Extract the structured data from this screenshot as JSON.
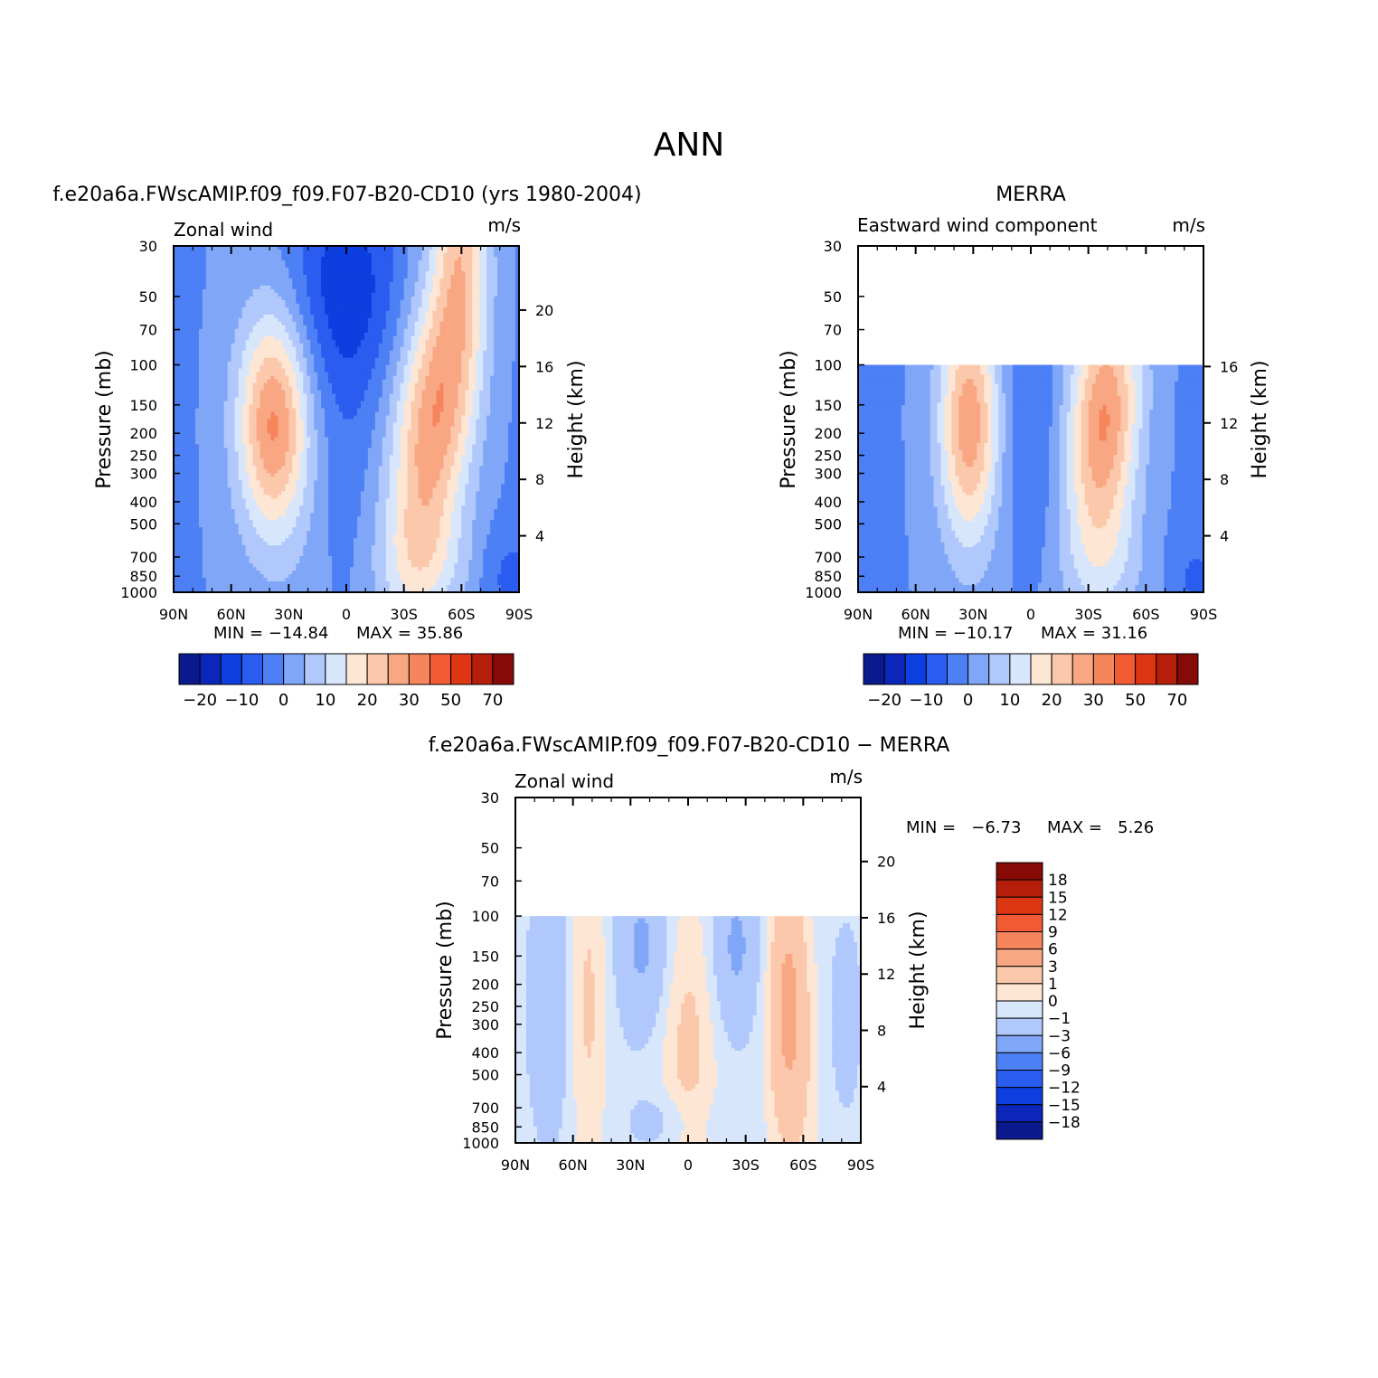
{
  "figure": {
    "title": "ANN",
    "season": "ANN"
  },
  "panels": [
    {
      "title": "f.e20a6a.FWscAMIP.f09_f09.F07-B20-CD10 (yrs 1980-2004)",
      "variable": "Zonal wind",
      "units": "m/s",
      "ylabel": "Pressure (mb)",
      "y2label": "Height (km)",
      "min_text": "MIN = −14.84",
      "max_text": "MAX = 35.86"
    },
    {
      "title": "MERRA",
      "variable": "Eastward wind component",
      "units": "m/s",
      "ylabel": "Pressure (mb)",
      "y2label": "Height (km)",
      "min_text": "MIN = −10.17",
      "max_text": "MAX = 31.16"
    },
    {
      "title": "f.e20a6a.FWscAMIP.f09_f09.F07-B20-CD10 − MERRA",
      "variable": "Zonal wind",
      "units": "m/s",
      "ylabel": "Pressure (mb)",
      "y2label": "Height (km)",
      "min_text": "MIN =   −6.73",
      "max_text": "MAX =   5.26"
    }
  ],
  "colorbars": {
    "absolute": {
      "colors": [
        "#0a1a8c",
        "#0b26b8",
        "#0c3ee0",
        "#2a5cf0",
        "#4d7ff5",
        "#80a6f8",
        "#b0c8fb",
        "#d8e6fc",
        "#fde6d4",
        "#fcc8ac",
        "#f9a683",
        "#f6855c",
        "#f15a32",
        "#dd3613",
        "#b41e0a",
        "#860a05"
      ],
      "labels": [
        "−20",
        "−10",
        "0",
        "10",
        "20",
        "30",
        "50",
        "70"
      ]
    },
    "difference": {
      "colors": [
        "#860a05",
        "#b41e0a",
        "#dd3613",
        "#f15a32",
        "#f6855c",
        "#f9a683",
        "#fcc8ac",
        "#fde6d4",
        "#d8e6fc",
        "#b0c8fb",
        "#80a6f8",
        "#4d7ff5",
        "#2a5cf0",
        "#0c3ee0",
        "#0b26b8",
        "#0a1a8c"
      ],
      "labels": [
        "18",
        "15",
        "12",
        "9",
        "6",
        "3",
        "1",
        "0",
        "−1",
        "−3",
        "−6",
        "−9",
        "−12",
        "−15",
        "−18"
      ]
    }
  },
  "chart_data": [
    {
      "type": "heatmap",
      "title": "f.e20a6a.FWscAMIP.f09_f09.F07-B20-CD10 (yrs 1980-2004)",
      "subtitle": "Zonal wind",
      "units": "m/s",
      "xlabel": "",
      "ylabel": "Pressure (mb)",
      "y2label": "Height (km)",
      "x_ticks": [
        "90N",
        "60N",
        "30N",
        "0",
        "30S",
        "60S",
        "90S"
      ],
      "y_ticks": [
        30,
        50,
        70,
        100,
        150,
        200,
        250,
        300,
        400,
        500,
        700,
        850,
        1000
      ],
      "y2_ticks": [
        4,
        8,
        12,
        16,
        20
      ],
      "ylim": [
        1000,
        30
      ],
      "xlim": [
        90,
        -90
      ],
      "y_scale": "log",
      "min": -14.84,
      "max": 35.86,
      "levels": [
        -20,
        -15,
        -10,
        -5,
        0,
        5,
        10,
        15,
        20,
        25,
        30,
        35,
        40,
        50,
        60,
        70
      ],
      "data_top": 30
    },
    {
      "type": "heatmap",
      "title": "MERRA",
      "subtitle": "Eastward wind component",
      "units": "m/s",
      "xlabel": "",
      "ylabel": "Pressure (mb)",
      "y2label": "Height (km)",
      "x_ticks": [
        "90N",
        "60N",
        "30N",
        "0",
        "30S",
        "60S",
        "90S"
      ],
      "y_ticks": [
        30,
        50,
        70,
        100,
        150,
        200,
        250,
        300,
        400,
        500,
        700,
        850,
        1000
      ],
      "y2_ticks": [
        4,
        8,
        12,
        16
      ],
      "ylim": [
        1000,
        30
      ],
      "xlim": [
        90,
        -90
      ],
      "y_scale": "log",
      "min": -10.17,
      "max": 31.16,
      "levels": [
        -20,
        -15,
        -10,
        -5,
        0,
        5,
        10,
        15,
        20,
        25,
        30,
        35,
        40,
        50,
        60,
        70
      ],
      "data_top": 100
    },
    {
      "type": "heatmap",
      "title": "f.e20a6a.FWscAMIP.f09_f09.F07-B20-CD10 − MERRA",
      "subtitle": "Zonal wind",
      "units": "m/s",
      "xlabel": "",
      "ylabel": "Pressure (mb)",
      "y2label": "Height (km)",
      "x_ticks": [
        "90N",
        "60N",
        "30N",
        "0",
        "30S",
        "60S",
        "90S"
      ],
      "y_ticks": [
        30,
        50,
        70,
        100,
        150,
        200,
        250,
        300,
        400,
        500,
        700,
        850,
        1000
      ],
      "y2_ticks": [
        4,
        8,
        12,
        16,
        20
      ],
      "ylim": [
        1000,
        30
      ],
      "xlim": [
        90,
        -90
      ],
      "y_scale": "log",
      "min": -6.73,
      "max": 5.26,
      "levels": [
        -18,
        -15,
        -12,
        -9,
        -6,
        -3,
        -1,
        0,
        1,
        3,
        6,
        9,
        12,
        15,
        18
      ],
      "data_top": 100
    }
  ]
}
